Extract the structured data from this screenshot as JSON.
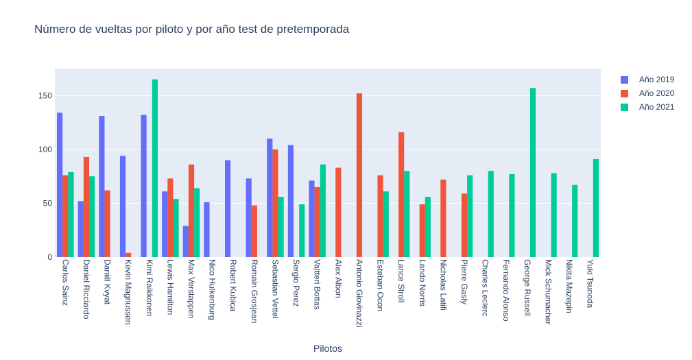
{
  "chart_data": {
    "type": "bar",
    "title": "Número de vueltas por piloto y por año test de pretemporada",
    "xlabel": "Pilotos",
    "ylabel": "",
    "ylim": [
      0,
      175
    ],
    "yticks": [
      0,
      50,
      100,
      150
    ],
    "grid": true,
    "legend_position": "top-right",
    "categories": [
      "Carlos Sainz",
      "Daniel Ricciardo",
      "Daniill Kvyat",
      "Kevin Magnussen",
      "Kimi Raikkonen",
      "Lewis Hamilton",
      "Max Verstappen",
      "Nico Hulkenburg",
      "Robert Kubica",
      "Romain Grosjean",
      "Sebastian Vettel",
      "Sergio Perez",
      "Valtteri Bottas",
      "Alex Albon",
      "Antonio Giovinazzi",
      "Esteban Ocon",
      "Lance Stroll",
      "Lando Norris",
      "Nicholas Latifi",
      "Pierre Gasly",
      "Charles Leclerc",
      "Fernando Alonso",
      "George Russell",
      "Mick Schumacher",
      "Nikita Mazepin",
      "Yuki Tsunoda"
    ],
    "series": [
      {
        "name": "Año 2019",
        "color": "#636efa",
        "values": [
          134,
          52,
          131,
          94,
          132,
          61,
          29,
          51,
          90,
          73,
          110,
          104,
          71,
          null,
          null,
          null,
          null,
          null,
          null,
          null,
          null,
          null,
          null,
          null,
          null,
          null
        ]
      },
      {
        "name": "Año 2020",
        "color": "#ef553b",
        "values": [
          76,
          93,
          62,
          4,
          null,
          73,
          86,
          null,
          null,
          48,
          100,
          null,
          65,
          83,
          152,
          76,
          116,
          49,
          72,
          59,
          null,
          null,
          null,
          null,
          null,
          null
        ]
      },
      {
        "name": "Año 2021",
        "color": "#00cc96",
        "values": [
          79,
          75,
          null,
          null,
          165,
          54,
          64,
          null,
          null,
          null,
          56,
          49,
          86,
          null,
          null,
          61,
          80,
          56,
          null,
          76,
          80,
          77,
          157,
          78,
          67,
          91
        ]
      }
    ]
  }
}
